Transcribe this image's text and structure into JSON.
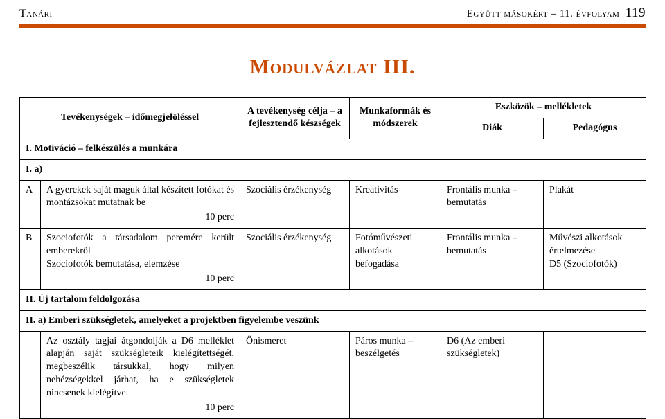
{
  "header": {
    "left": "Tanári",
    "right_text": "Együtt másokért – 11. évfolyam",
    "page_number": "119"
  },
  "accent_color": "#c94a00",
  "title": "Modulvázlat III.",
  "table": {
    "head": {
      "activities": "Tevékenységek – időmegjelöléssel",
      "goal": "A tevékenység célja – a fejlesztendő készségek",
      "methods": "Munkaformák és módszerek",
      "tools": "Eszközök – mellékletek",
      "student": "Diák",
      "teacher": "Pedagógus"
    },
    "section1": "I. Motiváció – felkészülés a munkára",
    "section1a": "I. a)",
    "rowA": {
      "idx": "A",
      "activity": "A gyerekek saját maguk által készített fotókat és montázsokat mutatnak be",
      "time": "10 perc",
      "goal": "Szociális érzékenység",
      "method": "Kreativitás",
      "student": "Frontális munka – bemutatás",
      "teacher": "Plakát"
    },
    "rowB": {
      "idx": "B",
      "activity": "Szociofotók a társadalom peremére került emberekről\nSzociofotók bemutatása, elemzése",
      "time": "10 perc",
      "goal": "Szociális érzékenység",
      "method": "Fotóművészeti alkotások befogadása",
      "student": "Frontális munka – bemutatás",
      "teacher": "Művészi alkotások értelmezése\nD5 (Szociofotók)"
    },
    "section2": "II. Új tartalom feldolgozása",
    "section2a": "II. a) Emberi szükségletek, amelyeket a projektben figyelembe veszünk",
    "rowC": {
      "idx": "",
      "activity": "Az osztály tagjai átgondolják a D6 melléklet alapján saját szükségleteik kielégítettségét, megbeszélik társukkal, hogy milyen nehézségekkel járhat, ha e szükségletek nincsenek kielégítve.",
      "time": "10 perc",
      "goal": "Önismeret",
      "method": "Páros munka – beszélgetés",
      "student": "D6 (Az emberi szükségletek)",
      "teacher": ""
    }
  }
}
